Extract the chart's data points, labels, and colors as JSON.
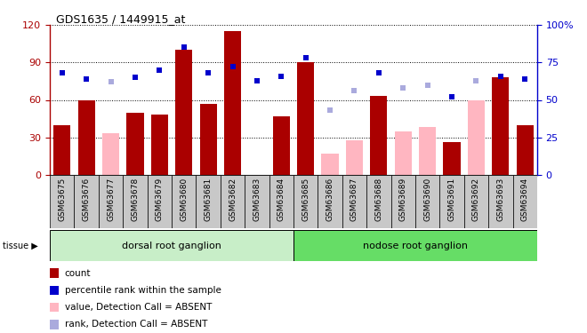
{
  "title": "GDS1635 / 1449915_at",
  "samples": [
    "GSM63675",
    "GSM63676",
    "GSM63677",
    "GSM63678",
    "GSM63679",
    "GSM63680",
    "GSM63681",
    "GSM63682",
    "GSM63683",
    "GSM63684",
    "GSM63685",
    "GSM63686",
    "GSM63687",
    "GSM63688",
    "GSM63689",
    "GSM63690",
    "GSM63691",
    "GSM63692",
    "GSM63693",
    "GSM63694"
  ],
  "count": [
    40,
    60,
    null,
    50,
    48,
    100,
    57,
    115,
    null,
    47,
    90,
    null,
    null,
    63,
    null,
    null,
    26,
    null,
    78,
    40
  ],
  "count_absent": [
    null,
    null,
    33,
    null,
    null,
    null,
    null,
    null,
    null,
    null,
    null,
    17,
    28,
    null,
    35,
    38,
    null,
    60,
    null,
    null
  ],
  "rank": [
    68,
    64,
    null,
    65,
    70,
    85,
    68,
    72,
    63,
    66,
    78,
    null,
    null,
    68,
    null,
    null,
    52,
    null,
    66,
    64
  ],
  "rank_absent": [
    null,
    null,
    62,
    null,
    null,
    null,
    null,
    null,
    null,
    null,
    null,
    43,
    56,
    null,
    58,
    60,
    null,
    63,
    null,
    null
  ],
  "tissue_groups": [
    {
      "label": "dorsal root ganglion",
      "start": 0,
      "end": 9,
      "color": "#C8EEC8"
    },
    {
      "label": "nodose root ganglion",
      "start": 10,
      "end": 19,
      "color": "#66DD66"
    }
  ],
  "left_ylim": [
    0,
    120
  ],
  "right_ylim": [
    0,
    100
  ],
  "left_yticks": [
    0,
    30,
    60,
    90,
    120
  ],
  "right_yticks": [
    0,
    25,
    50,
    75,
    100
  ],
  "right_yticklabels": [
    "0",
    "25",
    "50",
    "75",
    "100%"
  ],
  "bar_color": "#AA0000",
  "bar_absent_color": "#FFB6C1",
  "rank_color": "#0000CC",
  "rank_absent_color": "#AAAADD",
  "bg_color": "#C8C8C8",
  "plot_bg": "#FFFFFF",
  "legend_items": [
    {
      "label": "count",
      "color": "#AA0000"
    },
    {
      "label": "percentile rank within the sample",
      "color": "#0000CC"
    },
    {
      "label": "value, Detection Call = ABSENT",
      "color": "#FFB6C1"
    },
    {
      "label": "rank, Detection Call = ABSENT",
      "color": "#AAAADD"
    }
  ]
}
